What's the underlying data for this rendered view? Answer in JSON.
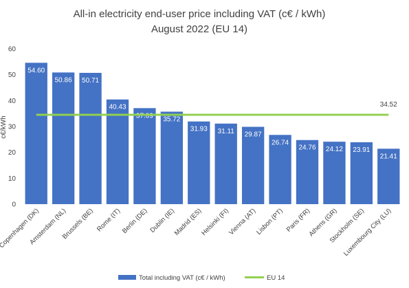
{
  "chart_data": {
    "type": "bar",
    "title": "All-in electricity end-user price including VAT (c€ / kWh)",
    "subtitle": "August 2022 (EU 14)",
    "ylabel": "c€/kWh",
    "ylim": [
      0,
      60
    ],
    "yticks": [
      0,
      10,
      20,
      30,
      40,
      50,
      60
    ],
    "grid": false,
    "legend_position": "bottom",
    "categories": [
      "Copenhagen (DK)",
      "Amsterdam (NL)",
      "Brussels (BE)",
      "Rome (IT)",
      "Berlin (DE)",
      "Dublin (IE)",
      "Madrid (ES)",
      "Helsinki (FI)",
      "Vienna (AT)",
      "Lisbon (PT)",
      "Paris (FR)",
      "Athens (GR)",
      "Stockholm (SE)",
      "Luxembourg City (LU)"
    ],
    "series": [
      {
        "name": "Total including VAT (c€ / kWh)",
        "type": "bar",
        "color": "#4472C4",
        "values": [
          54.6,
          50.86,
          50.71,
          40.43,
          37.09,
          35.72,
          31.93,
          31.11,
          29.87,
          26.74,
          24.76,
          24.12,
          23.91,
          21.41
        ],
        "labels": [
          "54.60",
          "50.86",
          "50.71",
          "40.43",
          "37.09",
          "35.72",
          "31.93",
          "31.11",
          "29.87",
          "26.74",
          "24.76",
          "24.12",
          "23.91",
          "21.41"
        ]
      },
      {
        "name": "EU 14",
        "type": "line",
        "color": "#92D050",
        "value": 34.52,
        "label": "34.52"
      }
    ]
  }
}
